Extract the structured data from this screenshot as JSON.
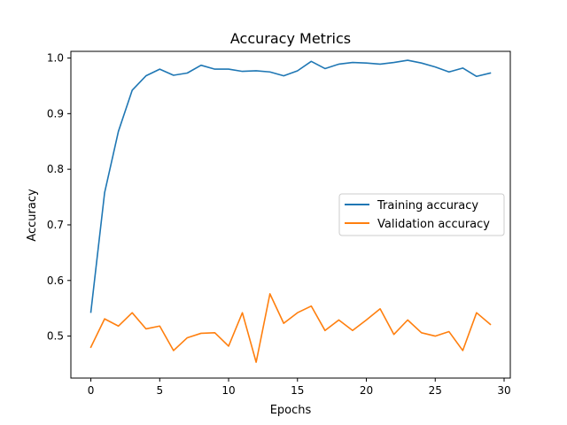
{
  "chart_data": {
    "type": "line",
    "title": "Accuracy Metrics",
    "xlabel": "Epochs",
    "ylabel": "Accuracy",
    "xlim": [
      -1.45,
      30.45
    ],
    "ylim": [
      0.4245,
      1.012
    ],
    "xticks": [
      0,
      5,
      10,
      15,
      20,
      25,
      30
    ],
    "yticks": [
      0.5,
      0.6,
      0.7,
      0.8,
      0.9,
      1.0
    ],
    "xtick_labels": [
      "0",
      "5",
      "10",
      "15",
      "20",
      "25",
      "30"
    ],
    "ytick_labels": [
      "0.5",
      "0.6",
      "0.7",
      "0.8",
      "0.9",
      "1.0"
    ],
    "grid": false,
    "legend_position": "center-right",
    "x": [
      0,
      1,
      2,
      3,
      4,
      5,
      6,
      7,
      8,
      9,
      10,
      11,
      12,
      13,
      14,
      15,
      16,
      17,
      18,
      19,
      20,
      21,
      22,
      23,
      24,
      25,
      26,
      27,
      28,
      29
    ],
    "series": [
      {
        "name": "Training accuracy",
        "color": "#1f77b4",
        "values": [
          0.543,
          0.758,
          0.868,
          0.942,
          0.968,
          0.98,
          0.969,
          0.973,
          0.987,
          0.98,
          0.98,
          0.976,
          0.977,
          0.975,
          0.968,
          0.977,
          0.994,
          0.981,
          0.989,
          0.992,
          0.991,
          0.989,
          0.992,
          0.996,
          0.991,
          0.984,
          0.975,
          0.982,
          0.967,
          0.973
        ]
      },
      {
        "name": "Validation accuracy",
        "color": "#ff7f0e",
        "values": [
          0.48,
          0.531,
          0.518,
          0.542,
          0.513,
          0.518,
          0.474,
          0.497,
          0.505,
          0.506,
          0.482,
          0.542,
          0.453,
          0.576,
          0.523,
          0.542,
          0.554,
          0.51,
          0.529,
          0.51,
          0.529,
          0.549,
          0.503,
          0.529,
          0.506,
          0.5,
          0.508,
          0.474,
          0.542,
          0.521
        ]
      }
    ]
  }
}
